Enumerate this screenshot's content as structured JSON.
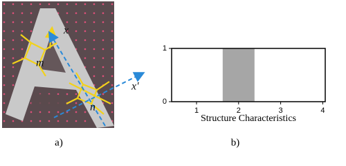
{
  "figure_a": {
    "labels": [
      "x",
      "m",
      "n",
      "x'"
    ],
    "caption": "a)"
  },
  "chart_data": {
    "type": "bar",
    "categories": [
      "1",
      "2",
      "3",
      "4"
    ],
    "values": [
      0,
      1,
      0,
      0
    ],
    "color": "#a6a6a6",
    "ylim": [
      0,
      1
    ],
    "yticks": [
      0,
      1
    ],
    "xlabel": "Structure Characteristics",
    "caption": "b)"
  }
}
